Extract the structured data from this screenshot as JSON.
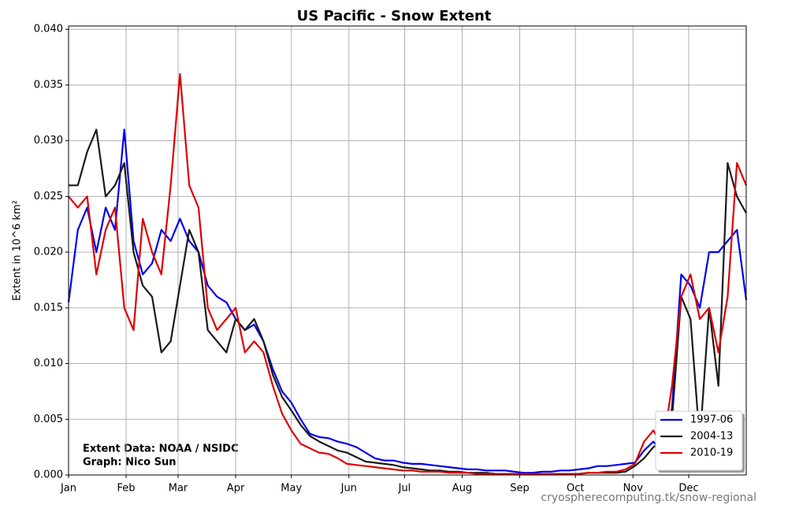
{
  "chart_data": {
    "type": "line",
    "title": "US Pacific - Snow Extent",
    "ylabel": "Extent in 10^6 km²",
    "annotations": [
      "Extent Data: NOAA / NSIDC",
      "Graph: Nico Sun"
    ],
    "footer": "cryospherecomputing.tk/snow-regional",
    "grid": true,
    "legend": "lower right",
    "xlim": [
      0,
      365
    ],
    "ylim": [
      0,
      0.0403
    ],
    "xticks": [
      {
        "value": 0,
        "label": "Jan"
      },
      {
        "value": 31,
        "label": "Feb"
      },
      {
        "value": 59,
        "label": "Mar"
      },
      {
        "value": 90,
        "label": "Apr"
      },
      {
        "value": 120,
        "label": "May"
      },
      {
        "value": 151,
        "label": "Jun"
      },
      {
        "value": 181,
        "label": "Jul"
      },
      {
        "value": 212,
        "label": "Aug"
      },
      {
        "value": 243,
        "label": "Sep"
      },
      {
        "value": 273,
        "label": "Oct"
      },
      {
        "value": 304,
        "label": "Nov"
      },
      {
        "value": 334,
        "label": "Dec"
      }
    ],
    "yticks": [
      {
        "value": 0,
        "label": "0.000"
      },
      {
        "value": 0.005,
        "label": "0.005"
      },
      {
        "value": 0.01,
        "label": "0.010"
      },
      {
        "value": 0.015,
        "label": "0.015"
      },
      {
        "value": 0.02,
        "label": "0.020"
      },
      {
        "value": 0.025,
        "label": "0.025"
      },
      {
        "value": 0.03,
        "label": "0.030"
      },
      {
        "value": 0.035,
        "label": "0.035"
      },
      {
        "value": 0.04,
        "label": "0.040"
      }
    ],
    "x": [
      0,
      5,
      10,
      15,
      20,
      25,
      30,
      35,
      40,
      45,
      50,
      55,
      60,
      65,
      70,
      75,
      80,
      85,
      90,
      95,
      100,
      105,
      110,
      115,
      120,
      125,
      130,
      135,
      140,
      145,
      150,
      155,
      160,
      165,
      170,
      175,
      180,
      185,
      190,
      195,
      200,
      205,
      210,
      215,
      220,
      225,
      230,
      235,
      240,
      245,
      250,
      255,
      260,
      265,
      270,
      275,
      280,
      285,
      290,
      295,
      300,
      305,
      310,
      315,
      320,
      325,
      330,
      335,
      340,
      345,
      350,
      355,
      360,
      365
    ],
    "series": [
      {
        "name": "1997-06",
        "color": "#0000ee",
        "values": [
          0.0155,
          0.022,
          0.024,
          0.02,
          0.024,
          0.022,
          0.031,
          0.021,
          0.018,
          0.019,
          0.022,
          0.021,
          0.023,
          0.021,
          0.02,
          0.017,
          0.016,
          0.0155,
          0.014,
          0.013,
          0.0135,
          0.012,
          0.0095,
          0.0075,
          0.0065,
          0.005,
          0.0037,
          0.0034,
          0.0033,
          0.003,
          0.0028,
          0.0025,
          0.002,
          0.0015,
          0.0013,
          0.0013,
          0.0011,
          0.001,
          0.001,
          0.0009,
          0.0008,
          0.0007,
          0.0006,
          0.0005,
          0.0005,
          0.0004,
          0.0004,
          0.0004,
          0.0003,
          0.0002,
          0.0002,
          0.0003,
          0.0003,
          0.0004,
          0.0004,
          0.0005,
          0.0006,
          0.0008,
          0.0008,
          0.0009,
          0.001,
          0.0011,
          0.0022,
          0.003,
          0.002,
          0.006,
          0.018,
          0.017,
          0.015,
          0.02,
          0.02,
          0.021,
          0.022,
          0.0157
        ]
      },
      {
        "name": "2004-13",
        "color": "#1a1a1a",
        "values": [
          0.026,
          0.026,
          0.029,
          0.031,
          0.025,
          0.026,
          0.028,
          0.02,
          0.017,
          0.016,
          0.011,
          0.012,
          0.017,
          0.022,
          0.02,
          0.013,
          0.012,
          0.011,
          0.014,
          0.013,
          0.014,
          0.012,
          0.009,
          0.007,
          0.0058,
          0.0045,
          0.0035,
          0.003,
          0.0026,
          0.0022,
          0.002,
          0.0016,
          0.0012,
          0.0011,
          0.001,
          0.0009,
          0.0007,
          0.0006,
          0.0005,
          0.0004,
          0.0004,
          0.0003,
          0.0003,
          0.0002,
          0.0002,
          0.0002,
          0.0001,
          0.0001,
          0.0001,
          0.0001,
          0.0001,
          0.0001,
          0.0001,
          0.0001,
          0.0001,
          0.0001,
          0.0002,
          0.0002,
          0.0002,
          0.0002,
          0.0003,
          0.0008,
          0.0015,
          0.0025,
          0.003,
          0.005,
          0.016,
          0.014,
          0.003,
          0.015,
          0.008,
          0.028,
          0.025,
          0.0235
        ]
      },
      {
        "name": "2010-19",
        "color": "#dd0000",
        "values": [
          0.025,
          0.024,
          0.025,
          0.018,
          0.022,
          0.024,
          0.015,
          0.013,
          0.023,
          0.02,
          0.018,
          0.026,
          0.036,
          0.026,
          0.024,
          0.015,
          0.013,
          0.014,
          0.015,
          0.011,
          0.012,
          0.011,
          0.008,
          0.0055,
          0.004,
          0.0028,
          0.0024,
          0.002,
          0.0019,
          0.0015,
          0.001,
          0.0009,
          0.0008,
          0.0007,
          0.0006,
          0.0005,
          0.0004,
          0.0004,
          0.0003,
          0.0003,
          0.0003,
          0.0002,
          0.0002,
          0.0002,
          0.0001,
          0.0001,
          0.0001,
          0.0001,
          0.0001,
          0.0001,
          0.0001,
          0.0001,
          0.0001,
          0.0001,
          0.0001,
          0.0001,
          0.0002,
          0.0002,
          0.0003,
          0.0003,
          0.0005,
          0.001,
          0.003,
          0.004,
          0.0025,
          0.008,
          0.016,
          0.018,
          0.014,
          0.015,
          0.011,
          0.016,
          0.028,
          0.026
        ]
      }
    ]
  }
}
